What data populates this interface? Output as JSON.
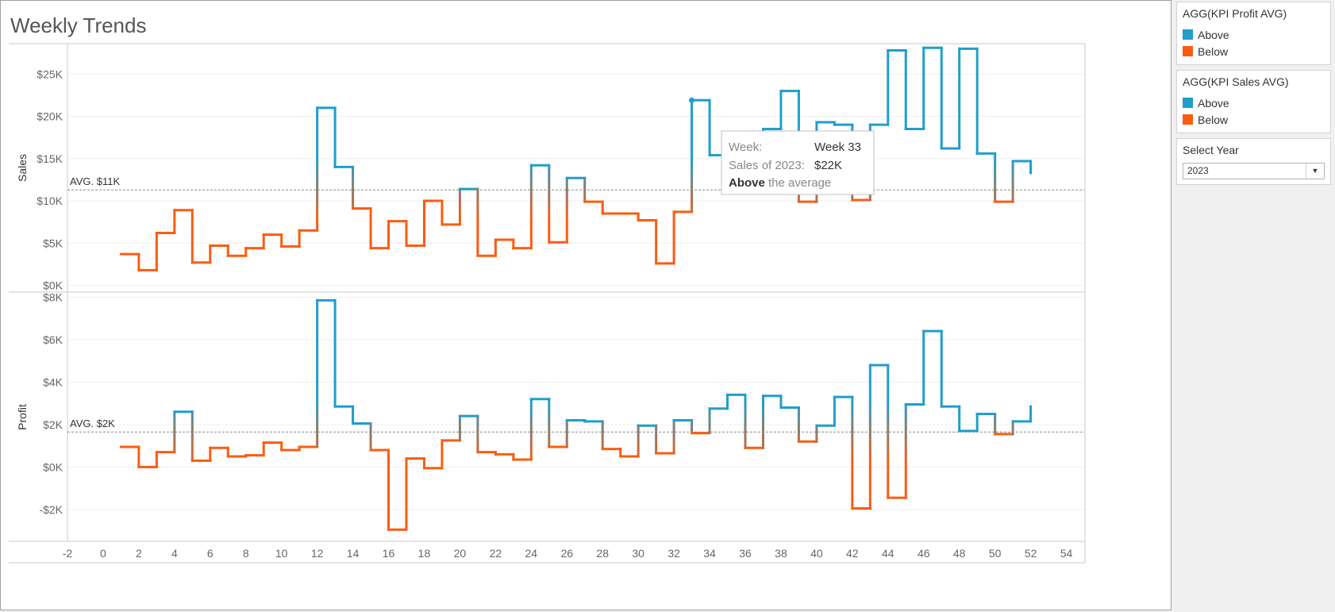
{
  "title": "Weekly Trends",
  "colors": {
    "above": "#1f9ecb",
    "below": "#fb5c10"
  },
  "legends": [
    {
      "title": "AGG(KPI Profit AVG)",
      "items": [
        {
          "label": "Above",
          "color": "#1f9ecb"
        },
        {
          "label": "Below",
          "color": "#fb5c10"
        }
      ]
    },
    {
      "title": "AGG(KPI Sales AVG)",
      "items": [
        {
          "label": "Above",
          "color": "#1f9ecb"
        },
        {
          "label": "Below",
          "color": "#fb5c10"
        }
      ]
    }
  ],
  "filter": {
    "title": "Select Year",
    "value": "2023",
    "icon": "caret-down-icon"
  },
  "tooltip": {
    "rows": [
      {
        "key": "Week:",
        "value": "Week 33"
      },
      {
        "key": "Sales of 2023:",
        "value": "$22K"
      }
    ],
    "line_bold": "Above",
    "line_rest": " the average"
  },
  "chart_data": {
    "type": "line",
    "step": true,
    "x": {
      "label": "",
      "range": [
        -2,
        55
      ],
      "ticks": [
        -2,
        0,
        2,
        4,
        6,
        8,
        10,
        12,
        14,
        16,
        18,
        20,
        22,
        24,
        26,
        28,
        30,
        32,
        34,
        36,
        38,
        40,
        42,
        44,
        46,
        48,
        50,
        52,
        54
      ]
    },
    "weeks": [
      1,
      2,
      3,
      4,
      5,
      6,
      7,
      8,
      9,
      10,
      11,
      12,
      13,
      14,
      15,
      16,
      17,
      18,
      19,
      20,
      21,
      22,
      23,
      24,
      25,
      26,
      27,
      28,
      29,
      30,
      31,
      32,
      33,
      34,
      35,
      36,
      37,
      38,
      39,
      40,
      41,
      42,
      43,
      44,
      45,
      46,
      47,
      48,
      49,
      50,
      51,
      52
    ],
    "panels": [
      {
        "id": "sales",
        "ylabel": "Sales",
        "ylim": [
          -700,
          28500
        ],
        "ticks": [
          0,
          5000,
          10000,
          15000,
          20000,
          25000
        ],
        "tick_labels": [
          "$0K",
          "$5K",
          "$10K",
          "$15K",
          "$20K",
          "$25K"
        ],
        "avg": 11300,
        "avg_label": "AVG. $11K",
        "highlight_week": 33,
        "values": [
          3700,
          1800,
          6200,
          8900,
          2700,
          4700,
          3500,
          4400,
          6000,
          4600,
          6500,
          21000,
          14000,
          9100,
          4400,
          7600,
          4700,
          10000,
          7200,
          11400,
          3500,
          5400,
          4400,
          14200,
          5100,
          12700,
          9900,
          8500,
          8500,
          7700,
          2600,
          8700,
          21900,
          15400,
          15400,
          15400,
          18500,
          23000,
          9900,
          19300,
          19000,
          10100,
          19000,
          27800,
          18500,
          28100,
          16200,
          28000,
          15600,
          9900,
          14700,
          13300
        ]
      },
      {
        "id": "profit",
        "ylabel": "Profit",
        "ylim": [
          -3500,
          8200
        ],
        "ticks": [
          -2000,
          0,
          2000,
          4000,
          6000,
          8000
        ],
        "tick_labels": [
          "-$2K",
          "$0K",
          "$2K",
          "$4K",
          "$6K",
          "$8K"
        ],
        "avg": 1650,
        "avg_label": "AVG. $2K",
        "values": [
          950,
          0,
          700,
          2600,
          300,
          900,
          500,
          550,
          1150,
          800,
          950,
          7850,
          2850,
          2050,
          800,
          -2950,
          400,
          -50,
          1250,
          2400,
          700,
          600,
          350,
          3200,
          950,
          2200,
          2150,
          850,
          500,
          1950,
          650,
          2200,
          1600,
          2750,
          3400,
          900,
          3350,
          2800,
          1200,
          1950,
          3300,
          -1950,
          4800,
          -1450,
          2950,
          6400,
          2850,
          1700,
          2500,
          1550,
          2150,
          2850
        ]
      }
    ]
  }
}
